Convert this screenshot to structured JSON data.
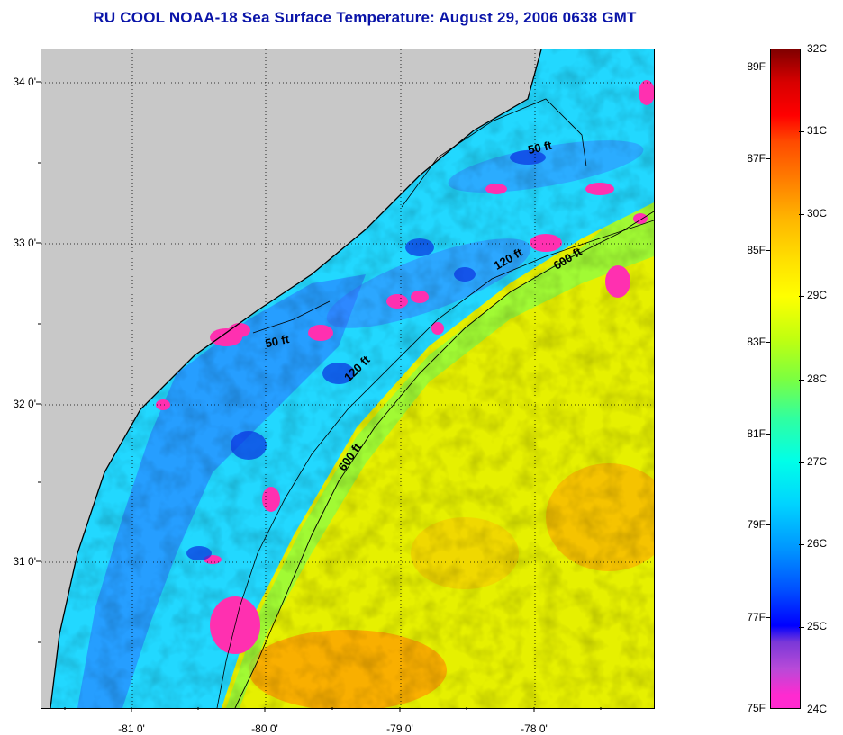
{
  "title": "RU COOL  NOAA-18  Sea Surface Temperature:  August 29, 2006 0638 GMT",
  "axes": {
    "lat_labels": [
      "34 0'",
      "33 0'",
      "32 0'",
      "31 0'"
    ],
    "lon_labels": [
      "-81 0'",
      "-80 0'",
      "-79 0'",
      "-78 0'"
    ]
  },
  "contours": {
    "labels": [
      "50 ft",
      "120 ft",
      "600 ft",
      "50 ft",
      "120 ft",
      "600 ft"
    ]
  },
  "colorbar": {
    "f_labels": [
      "89F",
      "87F",
      "85F",
      "83F",
      "81F",
      "79F",
      "77F",
      "75F"
    ],
    "c_labels": [
      "32C",
      "31C",
      "30C",
      "29C",
      "28C",
      "27C",
      "26C",
      "25C",
      "24C"
    ],
    "colors": {
      "land": "#c8c8c8",
      "warm_yellow": "#e8f000",
      "orange": "#ff9a00",
      "cyan": "#1ce0ff",
      "blue": "#1a5cff",
      "magenta": "#ff30b0"
    }
  }
}
